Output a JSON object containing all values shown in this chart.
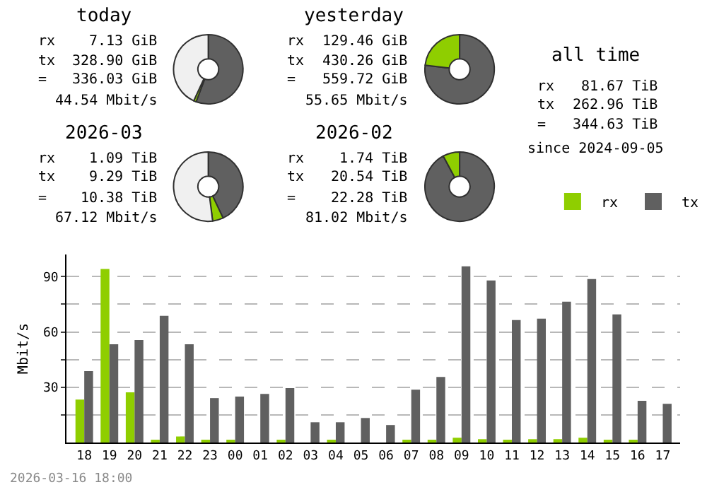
{
  "chart_data": [
    {
      "type": "donut",
      "title": "today",
      "categories": [
        null,
        null,
        null
      ],
      "values": [
        55.7,
        1.2,
        43.1
      ],
      "colors": [
        "#606060",
        "#8fce00",
        "#f0f0f0"
      ],
      "annotations": [
        "rx",
        "7.13 GiB",
        "tx",
        "328.90 GiB",
        "=",
        "336.03 GiB",
        "44.54 Mbit/s"
      ]
    },
    {
      "type": "donut",
      "title": "yesterday",
      "categories": [
        null,
        null
      ],
      "values": [
        76.9,
        23.1
      ],
      "colors": [
        "#606060",
        "#8fce00"
      ],
      "annotations": [
        "rx",
        "129.46 GiB",
        "tx",
        "430.26 GiB",
        "=",
        "559.72 GiB",
        "55.65 Mbit/s"
      ]
    },
    {
      "type": "donut",
      "title": "2026-03",
      "categories": [
        null,
        null,
        null
      ],
      "values": [
        43,
        5,
        52
      ],
      "colors": [
        "#606060",
        "#8fce00",
        "#f0f0f0"
      ],
      "annotations": [
        "rx",
        "1.09 TiB",
        "tx",
        "9.29 TiB",
        "=",
        "10.38 TiB",
        "67.12 Mbit/s"
      ]
    },
    {
      "type": "donut",
      "title": "2026-02",
      "categories": [
        null,
        null
      ],
      "values": [
        92.2,
        7.8
      ],
      "colors": [
        "#606060",
        "#8fce00"
      ],
      "annotations": [
        "rx",
        "1.74 TiB",
        "tx",
        "20.54 TiB",
        "=",
        "22.28 TiB",
        "81.02 Mbit/s"
      ]
    },
    {
      "type": "other",
      "title": "all time",
      "annotations": [
        "rx",
        "81.67 TiB",
        "tx",
        "262.96 TiB",
        "=",
        "344.63 TiB",
        "since 2024-09-05"
      ]
    },
    {
      "type": "bar",
      "ylabel": "Mbit/s",
      "legend": "top right",
      "grid": "y",
      "categories": [
        "18",
        "19",
        "20",
        "21",
        "22",
        "23",
        "00",
        "01",
        "02",
        "03",
        "04",
        "05",
        "06",
        "07",
        "08",
        "09",
        "10",
        "11",
        "12",
        "13",
        "14",
        "15",
        "16",
        "17"
      ],
      "series": [
        {
          "name": "rx",
          "color": "#8fce00",
          "values": [
            23.3,
            94.1,
            27.2,
            1,
            3.3,
            1,
            1,
            0,
            1,
            0,
            1,
            0,
            0,
            1,
            1,
            2.6,
            1.8,
            1,
            1.8,
            1.8,
            2.6,
            1,
            1,
            0
          ]
        },
        {
          "name": "tx",
          "color": "#606060",
          "values": [
            38.7,
            53.3,
            55.6,
            68.7,
            53.3,
            24.1,
            24.9,
            26.4,
            29.5,
            11,
            11,
            13.3,
            9.5,
            28.7,
            35.6,
            95.6,
            87.9,
            66.4,
            67.2,
            76.4,
            88.7,
            69.5,
            22.6,
            21
          ]
        }
      ],
      "ylim": [
        0,
        102
      ],
      "yticks": [
        {
          "value": 15,
          "label": null
        },
        30,
        {
          "value": 45,
          "label": null
        },
        60,
        {
          "value": 75,
          "label": null
        },
        90
      ],
      "annotations": [
        "2026-03-16 18:00"
      ]
    }
  ]
}
